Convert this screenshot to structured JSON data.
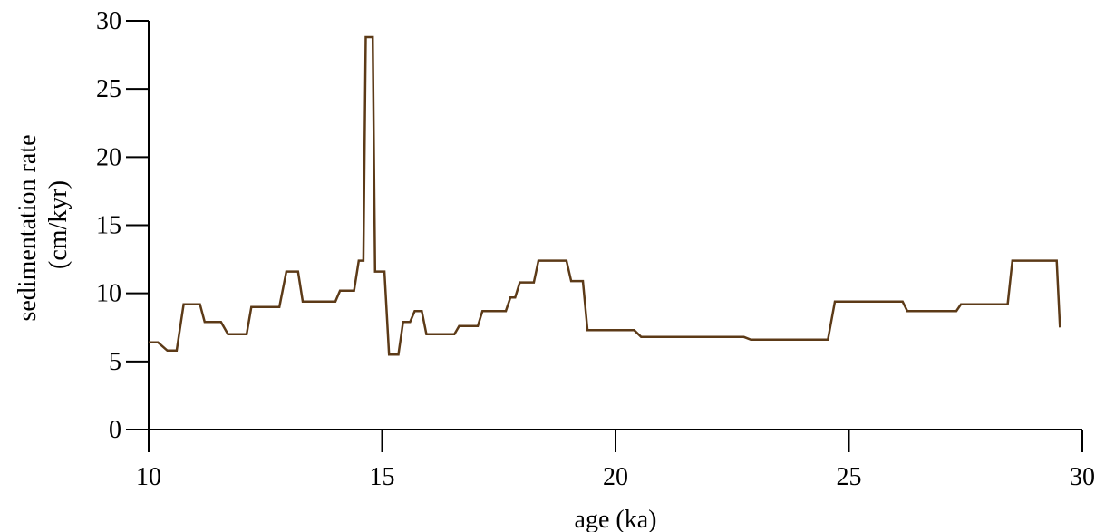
{
  "chart_data": {
    "type": "line",
    "title": "",
    "xlabel": "age (ka)",
    "ylabel": [
      "sedimentation rate",
      "(cm/kyr)"
    ],
    "xlim": [
      10,
      30
    ],
    "ylim": [
      0,
      30
    ],
    "xticks": [
      10,
      15,
      20,
      25,
      30
    ],
    "yticks": [
      0,
      5,
      10,
      15,
      20,
      25,
      30
    ],
    "xtick_labels": [
      "10",
      "15",
      "20",
      "25",
      "30"
    ],
    "ytick_labels": [
      "0",
      "5",
      "10",
      "15",
      "20",
      "25",
      "30"
    ],
    "grid": false,
    "legend": "none",
    "series": [
      {
        "color": "#5c3a17",
        "x": [
          10.0,
          10.2,
          10.4,
          10.6,
          10.75,
          11.1,
          11.2,
          11.55,
          11.7,
          12.1,
          12.2,
          12.8,
          12.95,
          13.2,
          13.3,
          14.0,
          14.1,
          14.4,
          14.5,
          14.6,
          14.65,
          14.8,
          14.85,
          15.05,
          15.15,
          15.35,
          15.45,
          15.6,
          15.7,
          15.85,
          15.95,
          16.55,
          16.65,
          17.05,
          17.15,
          17.65,
          17.75,
          17.85,
          17.95,
          18.25,
          18.35,
          18.95,
          19.05,
          19.3,
          19.4,
          20.4,
          20.55,
          22.75,
          22.9,
          24.55,
          24.7,
          26.15,
          26.25,
          27.3,
          27.4,
          28.4,
          28.5,
          29.45,
          29.52
        ],
        "y": [
          6.4,
          6.4,
          5.8,
          5.8,
          9.2,
          9.2,
          7.9,
          7.9,
          7.0,
          7.0,
          9.0,
          9.0,
          11.6,
          11.6,
          9.4,
          9.4,
          10.2,
          10.2,
          12.4,
          12.4,
          28.8,
          28.8,
          11.6,
          11.6,
          5.5,
          5.5,
          7.9,
          7.9,
          8.7,
          8.7,
          7.0,
          7.0,
          7.6,
          7.6,
          8.7,
          8.7,
          9.7,
          9.7,
          10.8,
          10.8,
          12.4,
          12.4,
          10.9,
          10.9,
          7.3,
          7.3,
          6.8,
          6.8,
          6.6,
          6.6,
          9.4,
          9.4,
          8.7,
          8.7,
          9.2,
          9.2,
          12.4,
          12.4,
          7.5
        ]
      }
    ]
  }
}
